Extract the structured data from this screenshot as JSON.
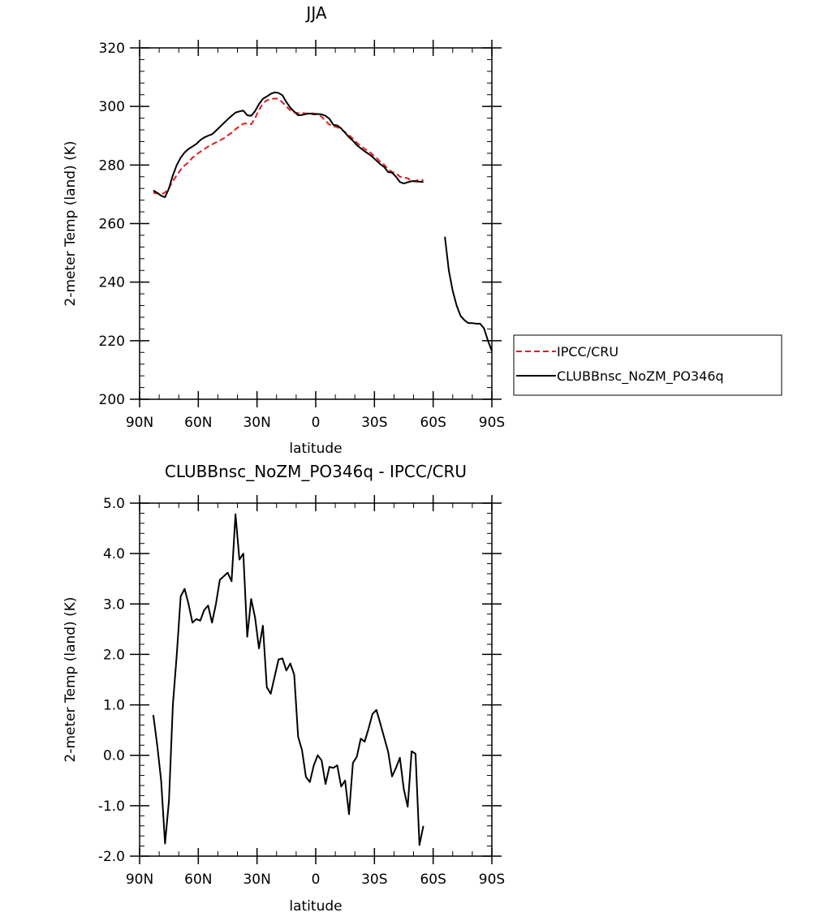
{
  "chart_data": [
    {
      "type": "line",
      "title": "JJA",
      "xlabel": "latitude",
      "ylabel": "2-meter Temp (land) (K)",
      "xlim": [
        90,
        -90
      ],
      "ylim": [
        200,
        320
      ],
      "x_ticks": [
        90,
        60,
        30,
        0,
        -30,
        -60,
        -90
      ],
      "x_tick_labels": [
        "90N",
        "60N",
        "30N",
        "0",
        "30S",
        "60S",
        "90S"
      ],
      "y_ticks": [
        200,
        220,
        240,
        260,
        280,
        300,
        320
      ],
      "y_tick_labels": [
        "200",
        "220",
        "240",
        "260",
        "280",
        "300",
        "320"
      ],
      "legend_position": "right",
      "series": [
        {
          "name": "IPCC/CRU",
          "color": "#e41a1c",
          "dash": "dashed",
          "x": [
            83,
            81,
            79,
            77,
            75,
            73,
            71,
            69,
            67,
            65,
            63,
            61,
            59,
            57,
            55,
            53,
            51,
            49,
            47,
            45,
            43,
            41,
            39,
            37,
            35,
            33,
            31,
            29,
            27,
            25,
            23,
            21,
            19,
            17,
            15,
            13,
            11,
            9,
            7,
            5,
            3,
            1,
            -1,
            -3,
            -5,
            -7,
            -9,
            -11,
            -13,
            -15,
            -17,
            -19,
            -21,
            -23,
            -25,
            -27,
            -29,
            -31,
            -33,
            -35,
            -37,
            -39,
            -41,
            -43,
            -45,
            -47,
            -49,
            -51,
            -53,
            -55
          ],
          "y": [
            270.5,
            270.3,
            270.0,
            270.6,
            272.2,
            274.5,
            276.5,
            278.4,
            279.8,
            281.0,
            282.5,
            283.6,
            284.5,
            285.4,
            286.3,
            287.0,
            287.7,
            288.4,
            289.1,
            290.1,
            291.0,
            292.2,
            293.2,
            294.1,
            294.2,
            293.9,
            296.0,
            298.8,
            301.0,
            302.1,
            302.5,
            302.7,
            302.6,
            301.4,
            300.0,
            298.7,
            298.0,
            297.7,
            297.8,
            297.6,
            297.7,
            297.6,
            297.4,
            296.5,
            295.0,
            293.8,
            293.2,
            292.9,
            292.2,
            291.2,
            290.2,
            289.0,
            287.6,
            286.5,
            285.5,
            284.8,
            283.6,
            282.5,
            281.1,
            280.1,
            278.5,
            277.6,
            277.2,
            276.0,
            275.7,
            275.5,
            274.5,
            274.6,
            275.0,
            274.8
          ]
        },
        {
          "name": "CLUBBnsc_NoZM_PO346q",
          "color": "#000000",
          "dash": "solid",
          "segments": [
            {
              "x": [
                83,
                81,
                79,
                77,
                75,
                73,
                71,
                69,
                67,
                65,
                63,
                61,
                59,
                57,
                55,
                53,
                51,
                49,
                47,
                45,
                43,
                41,
                39,
                37,
                35,
                33,
                31,
                29,
                27,
                25,
                23,
                21,
                19,
                17,
                15,
                13,
                11,
                9,
                7,
                5,
                3,
                1,
                -1,
                -3,
                -5,
                -7,
                -9,
                -11,
                -13,
                -15,
                -17,
                -19,
                -21,
                -23,
                -25,
                -27,
                -29,
                -31,
                -33,
                -35,
                -37,
                -39,
                -41,
                -43,
                -45,
                -47,
                -49,
                -51,
                -53,
                -55
              ],
              "y": [
                271.3,
                270.5,
                269.5,
                269.0,
                272.0,
                276.5,
                280.0,
                282.5,
                284.3,
                285.5,
                286.3,
                287.2,
                288.5,
                289.4,
                290.0,
                290.5,
                291.7,
                293.0,
                294.3,
                295.6,
                296.8,
                297.9,
                298.3,
                298.6,
                297.0,
                296.8,
                298.4,
                300.8,
                302.6,
                303.4,
                304.3,
                304.8,
                304.6,
                303.8,
                301.5,
                299.6,
                298.2,
                297.0,
                297.1,
                297.4,
                297.6,
                297.3,
                297.4,
                297.3,
                296.8,
                295.8,
                293.7,
                293.5,
                292.5,
                291.0,
                289.5,
                288.3,
                286.8,
                285.7,
                284.7,
                283.8,
                282.8,
                281.5,
                280.3,
                279.3,
                277.6,
                277.4,
                276.0,
                274.2,
                273.7,
                274.1,
                274.5,
                274.4,
                274.3,
                274.2
              ]
            },
            {
              "x": [
                -66,
                -68,
                -70,
                -72,
                -74,
                -76,
                -78,
                -80,
                -82,
                -84,
                -86,
                -88,
                -90
              ],
              "y": [
                255.5,
                244.0,
                237.0,
                232.0,
                228.5,
                227.0,
                226.0,
                226.0,
                225.8,
                225.8,
                224.2,
                220.0,
                216.5
              ]
            }
          ]
        }
      ]
    },
    {
      "type": "line",
      "title": "CLUBBnsc_NoZM_PO346q - IPCC/CRU",
      "xlabel": "latitude",
      "ylabel": "2-meter Temp (land) (K)",
      "xlim": [
        90,
        -90
      ],
      "ylim": [
        -2.0,
        5.0
      ],
      "x_ticks": [
        90,
        60,
        30,
        0,
        -30,
        -60,
        -90
      ],
      "x_tick_labels": [
        "90N",
        "60N",
        "30N",
        "0",
        "30S",
        "60S",
        "90S"
      ],
      "y_ticks": [
        -2.0,
        -1.0,
        0.0,
        1.0,
        2.0,
        3.0,
        4.0,
        5.0
      ],
      "y_tick_labels": [
        "-2.0",
        "-1.0",
        "0.0",
        "1.0",
        "2.0",
        "3.0",
        "4.0",
        "5.0"
      ],
      "series": [
        {
          "color": "#000000",
          "dash": "solid",
          "x": [
            83,
            81,
            79,
            77,
            75,
            73,
            71,
            69,
            67,
            65,
            63,
            61,
            59,
            57,
            55,
            53,
            51,
            49,
            47,
            45,
            43,
            41,
            39,
            37,
            35,
            33,
            31,
            29,
            27,
            25,
            23,
            21,
            19,
            17,
            15,
            13,
            11,
            9,
            7,
            5,
            3,
            1,
            -1,
            -3,
            -5,
            -7,
            -9,
            -11,
            -13,
            -15,
            -17,
            -19,
            -21,
            -23,
            -25,
            -27,
            -29,
            -31,
            -33,
            -35,
            -37,
            -39,
            -41,
            -43,
            -45,
            -47,
            -49,
            -51,
            -53,
            -55
          ],
          "y": [
            0.8,
            0.2,
            -0.5,
            -1.75,
            -0.9,
            1.0,
            2.0,
            3.15,
            3.3,
            3.0,
            2.63,
            2.7,
            2.67,
            2.88,
            2.97,
            2.63,
            3.0,
            3.48,
            3.55,
            3.62,
            3.45,
            4.78,
            3.88,
            4.0,
            2.35,
            3.1,
            2.73,
            2.12,
            2.57,
            1.35,
            1.22,
            1.56,
            1.9,
            1.92,
            1.68,
            1.82,
            1.6,
            0.37,
            0.1,
            -0.43,
            -0.53,
            -0.2,
            0.0,
            -0.1,
            -0.57,
            -0.23,
            -0.25,
            -0.2,
            -0.62,
            -0.5,
            -1.17,
            -0.15,
            -0.03,
            0.33,
            0.27,
            0.53,
            0.82,
            0.9,
            0.63,
            0.35,
            0.07,
            -0.42,
            -0.25,
            -0.05,
            -0.67,
            -1.02,
            0.08,
            0.03,
            -1.78,
            -1.4
          ]
        }
      ]
    }
  ]
}
